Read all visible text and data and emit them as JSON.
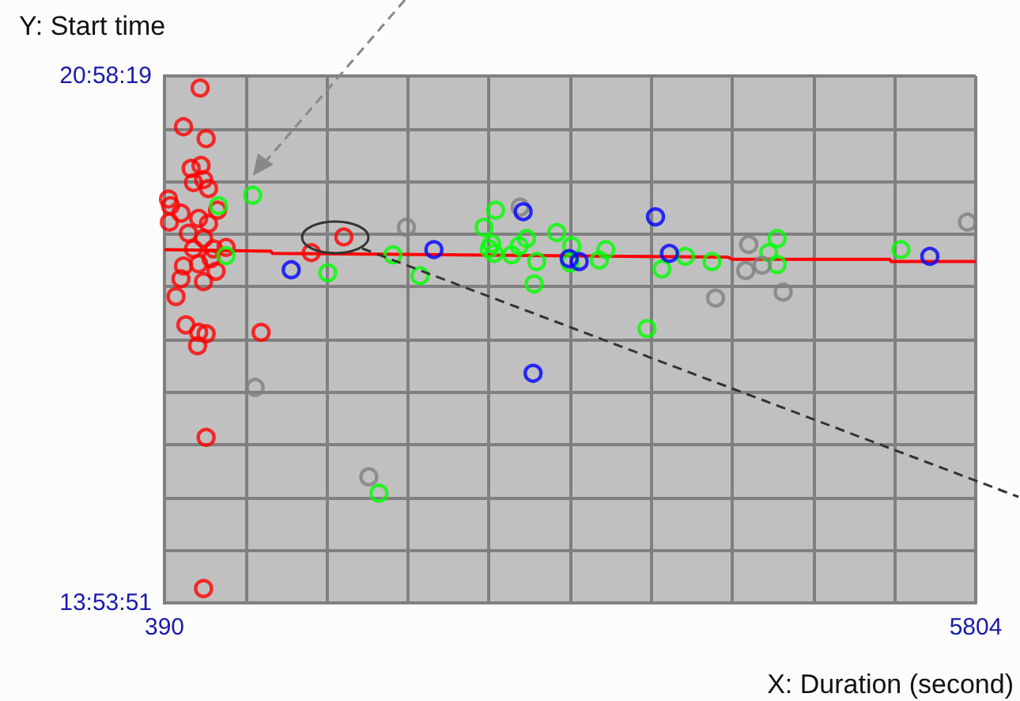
{
  "chart_data": {
    "type": "scatter",
    "xlabel": "X: Duration (second)",
    "ylabel": "Y: Start time",
    "xlim": [
      390,
      5804
    ],
    "xticks": [
      390,
      {
        "value": 931.4,
        "label": null
      },
      {
        "value": 1472.8,
        "label": null
      },
      {
        "value": 2014.2,
        "label": null
      },
      {
        "value": 2555.6,
        "label": null
      },
      {
        "value": 3097,
        "label": null
      },
      {
        "value": 3638.4,
        "label": null
      },
      {
        "value": 4179.8,
        "label": null
      },
      {
        "value": 4721.2,
        "label": null
      },
      {
        "value": 5262.6,
        "label": null
      },
      5804
    ],
    "ylim": [
      13.8975,
      20.9719
    ],
    "yticks": [
      {
        "value": 13.8975,
        "label": "13:53:51"
      },
      {
        "value": 14.6049,
        "label": null
      },
      {
        "value": 15.3124,
        "label": null
      },
      {
        "value": 16.0198,
        "label": null
      },
      {
        "value": 16.7273,
        "label": null
      },
      {
        "value": 17.4347,
        "label": null
      },
      {
        "value": 18.1421,
        "label": null
      },
      {
        "value": 18.8496,
        "label": null
      },
      {
        "value": 19.557,
        "label": null
      },
      {
        "value": 20.2645,
        "label": null
      },
      {
        "value": 20.9719,
        "label": "20:58:19"
      }
    ],
    "grid": true,
    "marker": "circle",
    "series": [
      {
        "color": "#ff0000",
        "x": [
          628,
          517,
          668,
          568,
          634,
          584,
          651,
          684,
          417,
          500,
          423,
          744,
          550,
          618,
          684,
          651,
          584,
          718,
          801,
          517,
          618,
          734,
          500,
          651,
          467,
          533,
          618,
          668,
          611,
          1035,
          668,
          651,
          1370,
          1587,
          430,
          701
        ],
        "values": [
          20.81,
          20.29,
          20.13,
          19.73,
          19.77,
          19.54,
          19.58,
          19.46,
          19.32,
          19.13,
          19.01,
          19.17,
          18.86,
          19.06,
          18.99,
          18.79,
          18.65,
          18.65,
          18.67,
          18.42,
          18.45,
          18.35,
          18.25,
          18.21,
          18.01,
          17.63,
          17.53,
          17.51,
          17.35,
          17.53,
          16.12,
          14.09,
          18.6,
          18.81,
          19.23,
          18.52
        ]
      },
      {
        "color": "#00ff00",
        "x": [
          979,
          751,
          801,
          1480,
          1915,
          2095,
          1821,
          2600,
          2523,
          2574,
          2590,
          2557,
          2707,
          2757,
          2807,
          2874,
          2857,
          3008,
          3108,
          3098,
          3292,
          3336,
          3610,
          3710,
          3867,
          4044,
          4479,
          4422,
          4479,
          5305
        ],
        "values": [
          19.37,
          19.23,
          18.56,
          18.33,
          18.57,
          18.29,
          15.37,
          19.17,
          18.94,
          18.72,
          18.59,
          18.65,
          18.57,
          18.69,
          18.79,
          18.48,
          18.18,
          18.87,
          18.69,
          18.46,
          18.5,
          18.64,
          17.58,
          18.38,
          18.55,
          18.48,
          18.79,
          18.6,
          18.44,
          18.64
        ]
      },
      {
        "color": "#808080",
        "x": [
          995,
          2005,
          1754,
          2764,
          4068,
          4289,
          4269,
          4379,
          4519,
          5749
        ],
        "values": [
          16.79,
          18.94,
          15.59,
          19.21,
          17.99,
          18.71,
          18.36,
          18.43,
          18.07,
          19.01
        ]
      },
      {
        "color": "#0000ff",
        "x": [
          1236,
          2188,
          2784,
          3091,
          3158,
          3667,
          3760,
          2850,
          5498
        ],
        "values": [
          18.37,
          18.64,
          19.15,
          18.52,
          18.48,
          19.08,
          18.59,
          16.98,
          18.55
        ]
      },
      {
        "type": "line",
        "marker": "none",
        "color": "#ff0000",
        "x": [
          390,
          1100,
          1110,
          4150,
          4180,
          5230,
          5240,
          5804
        ],
        "values": [
          18.64,
          18.62,
          18.59,
          18.54,
          18.51,
          18.51,
          18.48,
          18.48
        ]
      }
    ]
  }
}
